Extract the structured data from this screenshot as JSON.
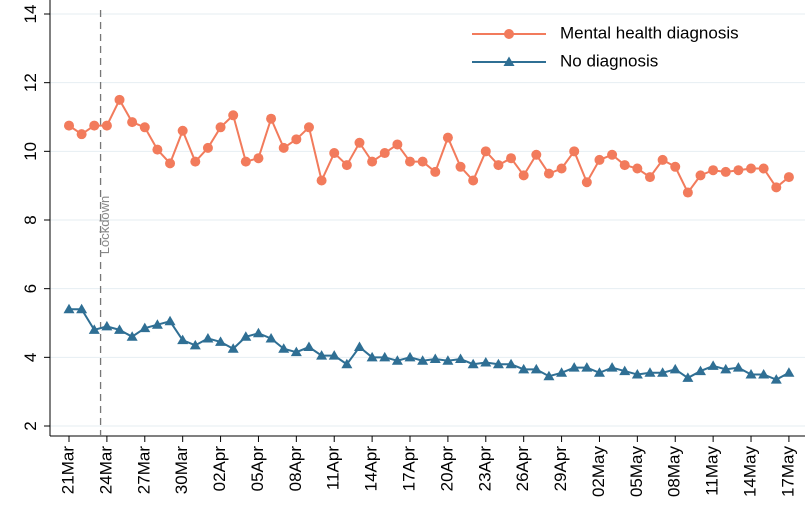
{
  "chart_data": {
    "type": "line",
    "categories": [
      "21Mar",
      null,
      null,
      "24Mar",
      null,
      null,
      "27Mar",
      null,
      null,
      "30Mar",
      null,
      null,
      "02Apr",
      null,
      null,
      "05Apr",
      null,
      null,
      "08Apr",
      null,
      null,
      "11Apr",
      null,
      null,
      "14Apr",
      null,
      null,
      "17Apr",
      null,
      null,
      "20Apr",
      null,
      null,
      "23Apr",
      null,
      null,
      "26Apr",
      null,
      null,
      "29Apr",
      null,
      null,
      "02May",
      null,
      null,
      "05May",
      null,
      null,
      "08May",
      null,
      null,
      "11May",
      null,
      null,
      "14May",
      null,
      null,
      "17May"
    ],
    "series": [
      {
        "name": "Mental health diagnosis",
        "color": "#f27b5c",
        "marker": "circle",
        "values": [
          10.75,
          10.5,
          10.75,
          10.75,
          11.5,
          10.85,
          10.7,
          10.05,
          9.65,
          10.6,
          9.7,
          10.1,
          10.7,
          11.05,
          9.7,
          9.8,
          10.95,
          10.1,
          10.35,
          10.7,
          9.15,
          9.95,
          9.6,
          10.25,
          9.7,
          9.95,
          10.2,
          9.7,
          9.7,
          9.4,
          10.4,
          9.55,
          9.15,
          10.0,
          9.6,
          9.8,
          9.3,
          9.9,
          9.35,
          9.5,
          10.0,
          9.1,
          9.75,
          9.9,
          9.6,
          9.5,
          9.25,
          9.75,
          9.55,
          8.8,
          9.3,
          9.45,
          9.4,
          9.45,
          9.5,
          9.5,
          8.95,
          9.25
        ]
      },
      {
        "name": "No diagnosis",
        "color": "#2f6f94",
        "marker": "triangle",
        "values": [
          5.4,
          5.4,
          4.8,
          4.9,
          4.8,
          4.6,
          4.85,
          4.95,
          5.05,
          4.5,
          4.35,
          4.55,
          4.45,
          4.25,
          4.6,
          4.7,
          4.55,
          4.25,
          4.15,
          4.3,
          4.05,
          4.05,
          3.8,
          4.3,
          4.0,
          4.0,
          3.9,
          4.0,
          3.9,
          3.95,
          3.9,
          3.95,
          3.8,
          3.85,
          3.8,
          3.8,
          3.65,
          3.65,
          3.45,
          3.55,
          3.7,
          3.7,
          3.55,
          3.7,
          3.6,
          3.5,
          3.55,
          3.55,
          3.65,
          3.4,
          3.6,
          3.75,
          3.65,
          3.7,
          3.5,
          3.5,
          3.35,
          3.55
        ]
      }
    ],
    "ylim": [
      2,
      14
    ],
    "yticks": [
      2,
      4,
      6,
      8,
      10,
      12,
      14
    ],
    "grid": true,
    "legend": "top-right",
    "annotations": [
      {
        "text": "Lockdown",
        "x": 2.5
      }
    ]
  }
}
